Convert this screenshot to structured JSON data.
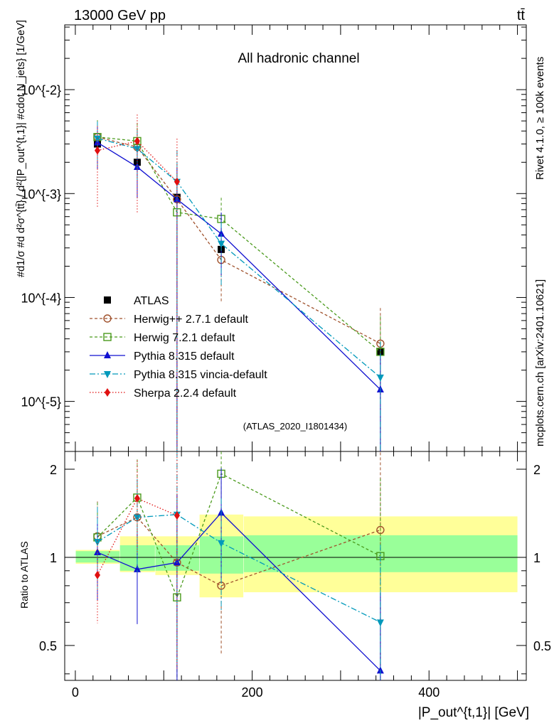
{
  "header": {
    "left": "13000 GeV pp",
    "right": "tt̄",
    "side_right": "Rivet 4.1.0, ≥ 100k events",
    "side_url": "mcplots.cern.ch [arXiv:2401.10621]"
  },
  "chart_data": {
    "type": "line",
    "title": "All hadronic channel",
    "watermark": "(ATLAS_2020_I1801434)",
    "xlabel": "|P_out^{t,1}| [GeV]",
    "ylabel": "#d1/σ #d d²σ^{tt̄} / d²{|P_out^{t,1}| #cdot N_jets} [1/GeV]",
    "ratio_ylabel": "Ratio to ATLAS",
    "xlim": [
      -12,
      510
    ],
    "ylim_log": [
      3.3e-06,
      0.042
    ],
    "ratio_ylim": [
      0.38,
      2.3
    ],
    "x_ticks": [
      "0",
      "200",
      "400"
    ],
    "y_ticks": [
      "10^{-5}",
      "10^{-4}",
      "10^{-3}",
      "10^{-2}"
    ],
    "ratio_ticks": [
      "0.5",
      "1",
      "2"
    ],
    "x": [
      25,
      70,
      115,
      165,
      345
    ],
    "bin_edges": [
      0,
      50,
      90,
      140,
      190,
      500
    ],
    "band_inner": [
      [
        0.96,
        1.05
      ],
      [
        0.9,
        1.1
      ],
      [
        0.9,
        1.1
      ],
      [
        0.88,
        1.18
      ],
      [
        0.89,
        1.19
      ]
    ],
    "band_outer": [
      [
        0.95,
        1.06
      ],
      [
        0.89,
        1.18
      ],
      [
        0.87,
        1.18
      ],
      [
        0.73,
        1.4
      ],
      [
        0.76,
        1.38
      ]
    ],
    "series": [
      {
        "name": "ATLAS",
        "values": [
          0.003,
          0.002,
          0.00092,
          0.00029,
          3e-05
        ],
        "ratio": [
          1,
          1,
          1,
          1,
          1
        ],
        "color": "#000000",
        "marker": "square",
        "dash": "none"
      },
      {
        "name": "Herwig++ 2.7.1 default",
        "values": [
          0.0035,
          0.0028,
          0.00088,
          0.00023,
          3.6e-05
        ],
        "ratio": [
          1.18,
          1.37,
          0.96,
          0.8,
          1.24
        ],
        "color": "#a0522d",
        "marker": "circle-open",
        "dash": "4,3"
      },
      {
        "name": "Herwig 7.2.1 default",
        "values": [
          0.0035,
          0.0032,
          0.00066,
          0.00057,
          3e-05
        ],
        "ratio": [
          1.17,
          1.6,
          0.73,
          1.93,
          1.01
        ],
        "color": "#4a9a1c",
        "marker": "square-open",
        "dash": "4,3"
      },
      {
        "name": "Pythia 8.315 default",
        "values": [
          0.0031,
          0.0018,
          0.00088,
          0.00041,
          1.3e-05
        ],
        "ratio": [
          1.04,
          0.91,
          0.96,
          1.42,
          0.41
        ],
        "color": "#1010d0",
        "marker": "triangle-up",
        "dash": "none"
      },
      {
        "name": "Pythia 8.315 vincia-default",
        "values": [
          0.0034,
          0.0027,
          0.0013,
          0.00033,
          1.7e-05
        ],
        "ratio": [
          1.13,
          1.37,
          1.4,
          1.12,
          0.6
        ],
        "color": "#0099bb",
        "marker": "triangle-down",
        "dash": "8,3,2,3"
      },
      {
        "name": "Sherpa 2.2.4 default",
        "values": [
          0.0026,
          0.0032,
          0.0013,
          0.0,
          0.0
        ],
        "ratio": [
          0.87,
          1.59,
          1.39,
          null,
          null
        ],
        "color": "#e01010",
        "marker": "diamond",
        "dash": "1.5,2.5"
      }
    ]
  }
}
